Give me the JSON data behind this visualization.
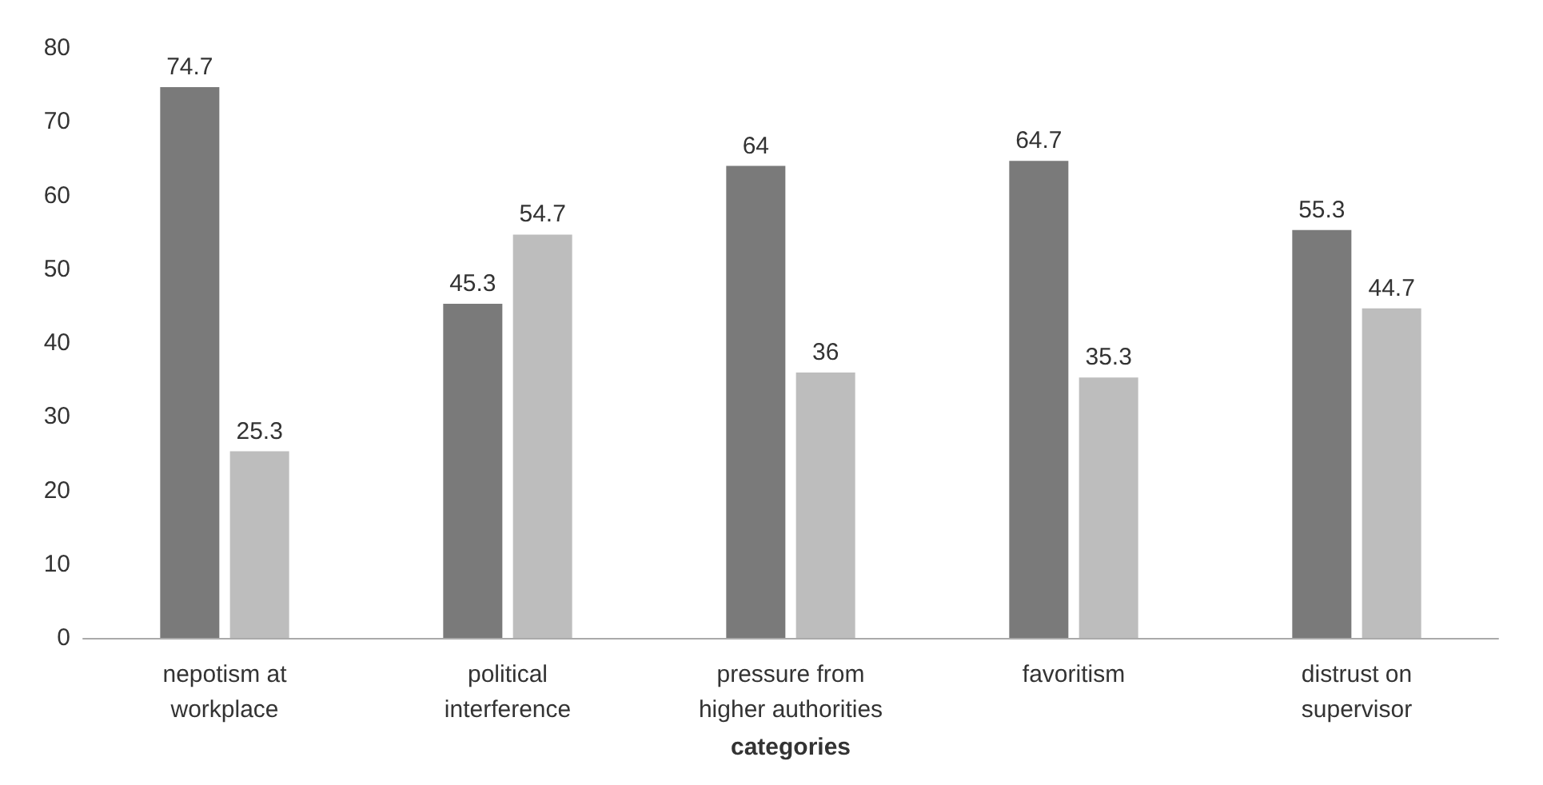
{
  "chart_data": {
    "type": "bar",
    "xlabel": "categories",
    "categories": [
      "nepotism at\nworkplace",
      "political\ninterference",
      "pressure from\nhigher authorities",
      "favoritism",
      "distrust on\nsupervisor"
    ],
    "series": [
      {
        "color": "#7a7a7a",
        "values": [
          74.7,
          45.3,
          64,
          64.7,
          55.3
        ]
      },
      {
        "color": "#bdbdbd",
        "values": [
          25.3,
          54.7,
          36,
          35.3,
          44.7
        ]
      }
    ],
    "ylim": [
      0,
      80
    ],
    "yticks": [
      0,
      10,
      20,
      30,
      40,
      50,
      60,
      70,
      80
    ],
    "data_labels": true,
    "grid": false
  }
}
